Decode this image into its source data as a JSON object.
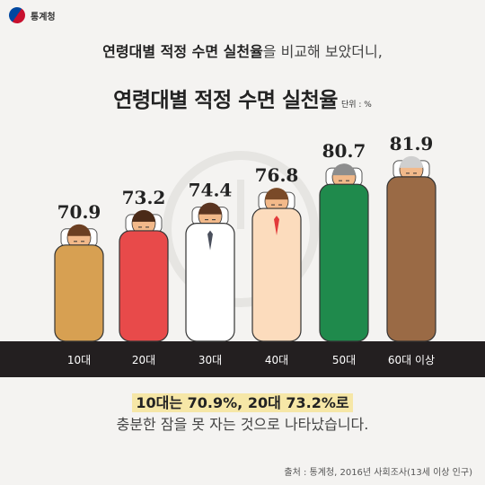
{
  "header": {
    "org": "통계청"
  },
  "intro": {
    "bold": "연령대별 적정 수면 실천율",
    "rest": "을 비교해 보았더니,"
  },
  "chart_data": {
    "type": "bar",
    "title": "연령대별 적정 수면 실천율",
    "unit": "단위 : %",
    "categories": [
      "10대",
      "20대",
      "30대",
      "40대",
      "50대",
      "60대 이상"
    ],
    "values": [
      70.9,
      73.2,
      74.4,
      76.8,
      80.7,
      81.9
    ],
    "value_labels": [
      "70.9",
      "73.2",
      "74.4",
      "76.8",
      "80.7",
      "81.9"
    ],
    "ylim": [
      0,
      100
    ],
    "colors": [
      "#d7a052",
      "#e84a4a",
      "#ffffff",
      "#fcdcbd",
      "#1f8a4c",
      "#9a6a45"
    ]
  },
  "caption": {
    "highlight": "10대는 70.9%, 20대 73.2%로",
    "line2": "충분한 잠을 못 자는 것으로 나타났습니다."
  },
  "source": "출처 : 통계청, 2016년 사회조사(13세 이상 인구)"
}
